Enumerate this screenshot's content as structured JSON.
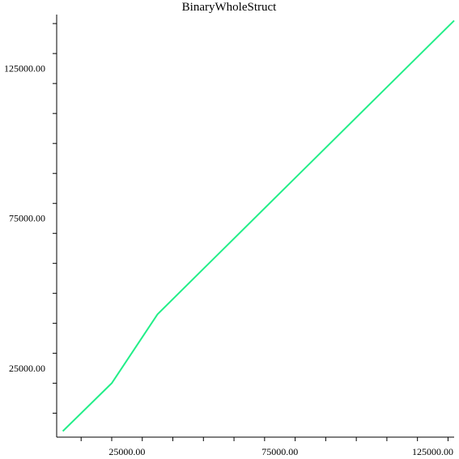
{
  "chart_data": {
    "type": "line",
    "title": "BinaryWholeStruct",
    "xlabel": "",
    "ylabel": "",
    "xlim": [
      2000,
      132000
    ],
    "ylim": [
      2000,
      143000
    ],
    "grid": false,
    "legend": "none",
    "x_ticks": [
      {
        "value": 25000,
        "label": "25000.00"
      },
      {
        "value": 75000,
        "label": "75000.00"
      },
      {
        "value": 125000,
        "label": "125000.00"
      }
    ],
    "y_ticks": [
      {
        "value": 25000,
        "label": "25000.00"
      },
      {
        "value": 75000,
        "label": "75000.00"
      },
      {
        "value": 125000,
        "label": "125000.00"
      }
    ],
    "x_minor_step": 10000,
    "y_minor_step": 10000,
    "series": [
      {
        "color": "#22ee88",
        "x": [
          4000,
          20000,
          35000,
          132000
        ],
        "y": [
          4000,
          20000,
          43000,
          141000
        ]
      }
    ]
  }
}
